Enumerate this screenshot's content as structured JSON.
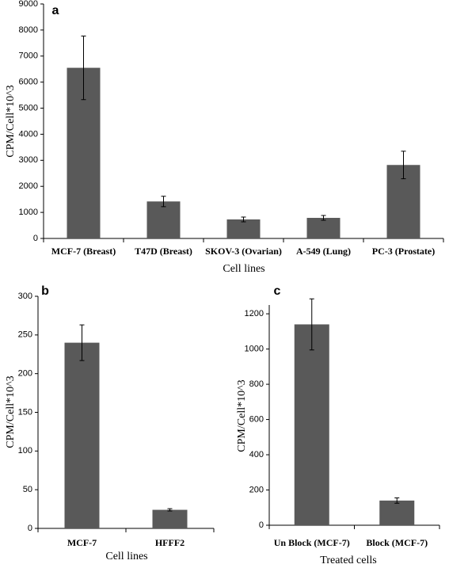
{
  "chart_data": [
    {
      "type": "bar",
      "panel_label": "a",
      "x_label": "Cell lines",
      "y_label": "CPM/Cell*10^3",
      "categories": [
        "MCF-7 (Breast)",
        "T47D (Breast)",
        "SKOV-3 (Ovarian)",
        "A-549  (Lung)",
        "PC-3 (Prostate)"
      ],
      "values": [
        6550,
        1420,
        730,
        790,
        2820
      ],
      "errors": [
        1220,
        200,
        90,
        90,
        530
      ],
      "color": "#595959",
      "ylim": [
        0,
        9000
      ],
      "yticks": [
        0,
        1000,
        2000,
        3000,
        4000,
        5000,
        6000,
        7000,
        8000,
        9000
      ]
    },
    {
      "type": "bar",
      "panel_label": "b",
      "x_label": "Cell lines",
      "y_label": "CPM/Cell*10^3",
      "categories": [
        "MCF-7",
        "HFFF2"
      ],
      "values": [
        240,
        24
      ],
      "errors": [
        23,
        1.5
      ],
      "color": "#595959",
      "ylim": [
        0,
        300
      ],
      "yticks": [
        0,
        50,
        100,
        150,
        200,
        250,
        300
      ]
    },
    {
      "type": "bar",
      "panel_label": "c",
      "x_label": "Treated cells",
      "y_label": "CPM/Cell*10^3",
      "categories": [
        "Un Block (MCF-7)",
        "Block (MCF-7)"
      ],
      "values": [
        1140,
        140
      ],
      "errors": [
        145,
        15
      ],
      "color": "#595959",
      "ylim": [
        0,
        1250
      ],
      "yticks": [
        0,
        200,
        400,
        600,
        800,
        1000,
        1200
      ]
    }
  ]
}
